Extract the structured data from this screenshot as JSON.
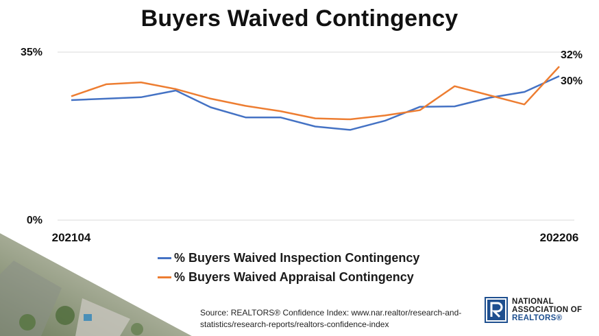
{
  "chart_data": {
    "type": "line",
    "title": "Buyers Waived Contingency",
    "x_labels_shown": [
      "202104",
      "202206"
    ],
    "x": [
      "202104",
      "202105",
      "202106",
      "202107",
      "202108",
      "202109",
      "202110",
      "202111",
      "202112",
      "202201",
      "202202",
      "202203",
      "202204",
      "202205",
      "202206"
    ],
    "y_ticks": [
      "0%",
      "35%"
    ],
    "ylim": [
      0,
      35
    ],
    "grid": "horizontal",
    "legend_placement": "bottom-center",
    "series": [
      {
        "name": "% Buyers Waived Inspection Contingency",
        "color": "#4472c4",
        "values": [
          25.0,
          25.3,
          25.6,
          27.0,
          23.5,
          21.4,
          21.4,
          19.5,
          18.8,
          20.7,
          23.6,
          23.7,
          25.5,
          26.7,
          30.0
        ],
        "end_label": "30%"
      },
      {
        "name": "% Buyers Waived Appraisal Contingency",
        "color": "#ed7d31",
        "values": [
          25.8,
          28.3,
          28.7,
          27.3,
          25.3,
          23.8,
          22.7,
          21.2,
          21.0,
          21.8,
          22.9,
          27.9,
          26.0,
          24.1,
          32.0
        ],
        "end_label": "32%"
      }
    ]
  },
  "source": {
    "line1": "Source: REALTORS® Confidence Index: www.nar.realtor/research-and-",
    "line2": "statistics/research-reports/realtors-confidence-index"
  },
  "logo": {
    "line1": "NATIONAL",
    "line2": "ASSOCIATION OF",
    "line3": "REALTORS®",
    "icon": "realtor-r-logo-icon"
  }
}
